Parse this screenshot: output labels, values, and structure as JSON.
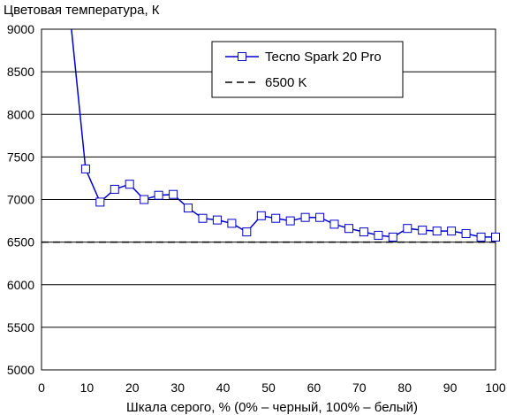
{
  "chart_data": {
    "type": "line",
    "ylabel": "Цветовая температура, К",
    "xlabel": "Шкала серого, % (0% – черный, 100% – белый)",
    "xlim": [
      0,
      100
    ],
    "ylim": [
      5000,
      9000
    ],
    "x_ticks": [
      "0",
      "10",
      "20",
      "30",
      "40",
      "50",
      "60",
      "70",
      "80",
      "90",
      "100"
    ],
    "y_ticks": [
      "5000",
      "5500",
      "6000",
      "6500",
      "7000",
      "7500",
      "8000",
      "8500",
      "9000"
    ],
    "grid": "horizontal",
    "legend_position": "top-right",
    "series": [
      {
        "name": "Tecno Spark 20 Pro",
        "color": "#0000cc",
        "marker": "open-square",
        "line_entry": {
          "x": 6.5,
          "y": 9050
        },
        "x": [
          9.7,
          12.9,
          16.1,
          19.4,
          22.6,
          25.8,
          29.0,
          32.3,
          35.5,
          38.7,
          41.9,
          45.2,
          48.4,
          51.6,
          54.8,
          58.1,
          61.3,
          64.5,
          67.7,
          71.0,
          74.2,
          77.4,
          80.6,
          83.9,
          87.1,
          90.3,
          93.5,
          96.8,
          100.0
        ],
        "y": [
          7360,
          6970,
          7120,
          7180,
          7000,
          7050,
          7060,
          6900,
          6780,
          6760,
          6720,
          6620,
          6810,
          6780,
          6750,
          6790,
          6790,
          6710,
          6660,
          6620,
          6580,
          6560,
          6660,
          6640,
          6630,
          6630,
          6600,
          6560,
          6560
        ]
      },
      {
        "name": "6500 K",
        "color": "#000000",
        "style": "dashed",
        "x": [
          0,
          100
        ],
        "y": [
          6500,
          6500
        ]
      }
    ]
  }
}
